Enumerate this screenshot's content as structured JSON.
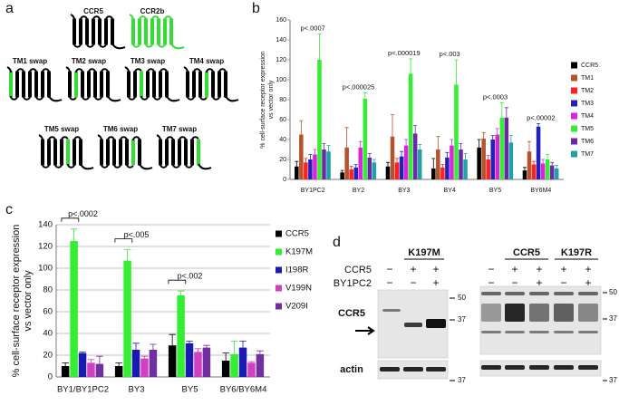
{
  "panel_labels": [
    "a",
    "b",
    "c",
    "d"
  ],
  "panel_a": {
    "top": [
      "CCR5",
      "CCR2b"
    ],
    "swaps": [
      "TM1 swap",
      "TM2 swap",
      "TM3 swap",
      "TM4 swap",
      "TM5 swap",
      "TM6 swap",
      "TM7 swap"
    ]
  },
  "chart_data": [
    {
      "type": "bar",
      "ylabel": [
        "% cell-surface receptor expression",
        "vs vector only"
      ],
      "categories": [
        "BY1PC2",
        "BY2",
        "BY3",
        "BY4",
        "BY5",
        "BY6M4"
      ],
      "series": [
        {
          "name": "CCR5",
          "color": "#000000",
          "values": [
            13,
            7,
            13,
            11,
            32,
            9
          ],
          "errors": [
            5,
            2,
            4,
            10,
            8,
            3
          ]
        },
        {
          "name": "TM1",
          "color": "#b5532e",
          "values": [
            45,
            32,
            43,
            30,
            41,
            28
          ],
          "errors": [
            14,
            20,
            22,
            13,
            6,
            10
          ]
        },
        {
          "name": "TM2",
          "color": "#ff2020",
          "values": [
            17,
            10,
            17,
            12,
            20,
            15
          ],
          "errors": [
            4,
            3,
            4,
            3,
            4,
            3
          ]
        },
        {
          "name": "TM3",
          "color": "#2222bb",
          "values": [
            20,
            12,
            23,
            22,
            40,
            53
          ],
          "errors": [
            5,
            3,
            5,
            5,
            4,
            3
          ]
        },
        {
          "name": "TM4",
          "color": "#dd22dd",
          "values": [
            25,
            32,
            34,
            34,
            45,
            16
          ],
          "errors": [
            5,
            6,
            6,
            6,
            6,
            4
          ]
        },
        {
          "name": "TM5",
          "color": "#33ee33",
          "values": [
            120,
            81,
            106,
            95,
            62,
            20
          ],
          "errors": [
            26,
            6,
            15,
            25,
            15,
            5
          ]
        },
        {
          "name": "TM6",
          "color": "#6a2aa8",
          "values": [
            30,
            22,
            46,
            30,
            62,
            14
          ],
          "errors": [
            6,
            4,
            8,
            6,
            10,
            3
          ]
        },
        {
          "name": "TM7",
          "color": "#22a0a8",
          "values": [
            28,
            17,
            30,
            20,
            37,
            11
          ],
          "errors": [
            6,
            3,
            5,
            6,
            7,
            3
          ]
        }
      ],
      "ylim": [
        0,
        160
      ],
      "yticks": [
        0,
        20,
        40,
        60,
        80,
        100,
        120,
        140,
        160
      ],
      "grid": false,
      "legend": "right",
      "annotations": [
        "p<.0007",
        "p<.000025",
        "p<.000019",
        "p<.003",
        "p<.0003",
        "p<.00002"
      ]
    },
    {
      "type": "bar",
      "ylabel": [
        "% cell-surface receptor expression",
        "vs vector only"
      ],
      "categories": [
        "BY1/BY1PC2",
        "BY3",
        "BY5",
        "BY6/BY6M4"
      ],
      "series": [
        {
          "name": "CCR5",
          "color": "#000000",
          "values": [
            10,
            10,
            29,
            15
          ],
          "errors": [
            3,
            3,
            10,
            7
          ]
        },
        {
          "name": "K197M",
          "color": "#33ee33",
          "values": [
            125,
            107,
            75,
            21
          ],
          "errors": [
            11,
            10,
            4,
            12
          ]
        },
        {
          "name": "I198R",
          "color": "#1a1ab0",
          "values": [
            22,
            25,
            31,
            27
          ],
          "errors": [
            1,
            6,
            2,
            6
          ]
        },
        {
          "name": "V199N",
          "color": "#d040c0",
          "values": [
            13,
            17,
            23,
            13
          ],
          "errors": [
            3,
            2,
            3,
            1
          ]
        },
        {
          "name": "V209I",
          "color": "#7030a0",
          "values": [
            12,
            25,
            27,
            21
          ],
          "errors": [
            7,
            5,
            2,
            3
          ]
        }
      ],
      "ylim": [
        0,
        140
      ],
      "yticks": [
        0,
        20,
        40,
        60,
        80,
        100,
        120,
        140
      ],
      "grid": true,
      "legend": "right",
      "annotations": [
        "p<.0002",
        "p<.005",
        "p<.002"
      ]
    }
  ],
  "panel_d": {
    "left": {
      "header": "K197M",
      "rows": [
        {
          "label": "CCR5",
          "signs": [
            "−",
            "+",
            "+"
          ]
        },
        {
          "label": "BY1PC2",
          "signs": [
            "−",
            "−",
            "+"
          ]
        }
      ],
      "blot_labels": [
        "CCR5",
        "actin"
      ],
      "markers": [
        "50",
        "37",
        "37"
      ]
    },
    "right": {
      "headers": [
        "CCR5",
        "K197R"
      ],
      "rows": [
        {
          "signs": [
            "−",
            "+",
            "+",
            "+",
            "+"
          ]
        },
        {
          "signs": [
            "−",
            "−",
            "+",
            "−",
            "+"
          ]
        }
      ],
      "markers": [
        "50",
        "37",
        "37"
      ]
    }
  }
}
